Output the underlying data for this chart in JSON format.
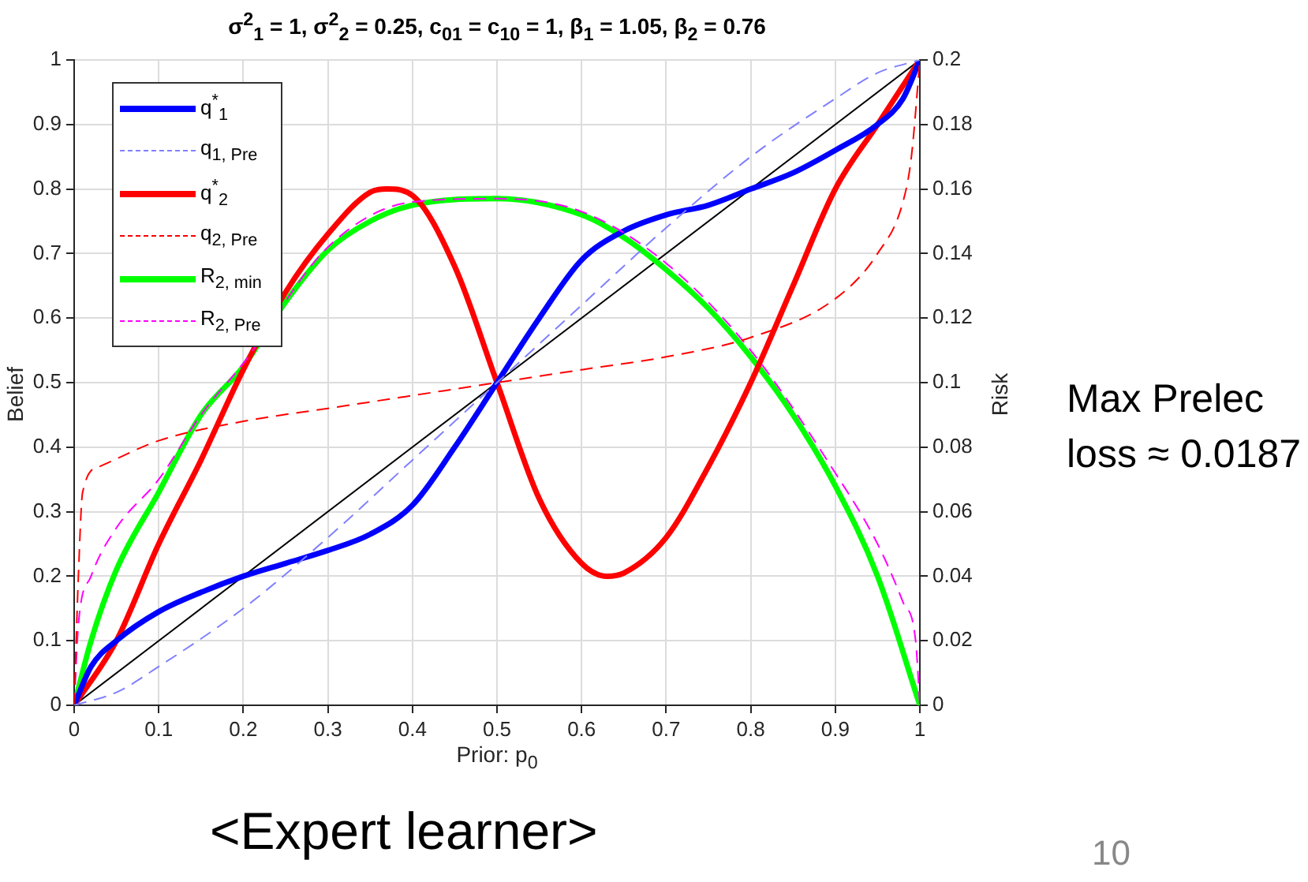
{
  "chart_data": {
    "type": "line",
    "title": "σ$^{2}$$_{1}$ = 1, σ$^{2}$$_{2}$ = 0.25, c$_{01}$ = c$_{10}$ = 1, β$_{1}$ = 1.05, β$_{2}$ = 0.76",
    "xlabel": "Prior: p$_{0}$",
    "ylabel": "Belief",
    "y2label": "Risk",
    "xlim": [
      0,
      1
    ],
    "xticks": [
      0,
      0.1,
      0.2,
      0.3,
      0.4,
      0.5,
      0.6,
      0.7,
      0.8,
      0.9,
      1
    ],
    "ylim": [
      0,
      1
    ],
    "yticks": [
      0,
      0.1,
      0.2,
      0.3,
      0.4,
      0.5,
      0.6,
      0.7,
      0.8,
      0.9,
      1
    ],
    "y2lim": [
      0,
      0.2
    ],
    "y2ticks": [
      0,
      0.02,
      0.04,
      0.06,
      0.08,
      0.1,
      0.12,
      0.14,
      0.16,
      0.18,
      0.2
    ],
    "grid": true,
    "legend": "top left",
    "marker": "none",
    "series": [
      {
        "name": "q$^{*}$$_{1}$",
        "color": "#0000ff",
        "line_style": "solid",
        "x": [
          0,
          0.02,
          0.05,
          0.1,
          0.15,
          0.2,
          0.25,
          0.3,
          0.35,
          0.4,
          0.45,
          0.5,
          0.55,
          0.6,
          0.65,
          0.7,
          0.75,
          0.8,
          0.85,
          0.9,
          0.95,
          0.98,
          1
        ],
        "values": [
          0,
          0.06,
          0.1,
          0.145,
          0.175,
          0.2,
          0.22,
          0.24,
          0.265,
          0.31,
          0.4,
          0.5,
          0.6,
          0.69,
          0.735,
          0.76,
          0.775,
          0.8,
          0.825,
          0.86,
          0.9,
          0.94,
          1
        ]
      },
      {
        "name": "q$_{1, Pre}$",
        "color": "#8080ff",
        "line_style": "dashed",
        "x": [
          0,
          0.05,
          0.1,
          0.2,
          0.3,
          0.4,
          0.5,
          0.6,
          0.7,
          0.8,
          0.9,
          0.95,
          1
        ],
        "values": [
          0,
          0.02,
          0.06,
          0.15,
          0.26,
          0.38,
          0.5,
          0.62,
          0.74,
          0.85,
          0.94,
          0.98,
          1
        ]
      },
      {
        "name": "q$^{*}$$_{2}$",
        "color": "#ff0000",
        "line_style": "solid",
        "x": [
          0,
          0.05,
          0.1,
          0.15,
          0.2,
          0.25,
          0.3,
          0.35,
          0.37,
          0.4,
          0.45,
          0.5,
          0.55,
          0.6,
          0.63,
          0.65,
          0.7,
          0.75,
          0.8,
          0.85,
          0.9,
          0.95,
          1
        ],
        "values": [
          0,
          0.1,
          0.25,
          0.38,
          0.52,
          0.64,
          0.73,
          0.795,
          0.8,
          0.79,
          0.68,
          0.5,
          0.32,
          0.22,
          0.2,
          0.205,
          0.26,
          0.37,
          0.5,
          0.65,
          0.8,
          0.9,
          1
        ]
      },
      {
        "name": "q$_{2, Pre}$",
        "color": "#ff0000",
        "line_style": "dashed",
        "x": [
          0,
          0.005,
          0.01,
          0.03,
          0.1,
          0.2,
          0.3,
          0.4,
          0.5,
          0.6,
          0.7,
          0.8,
          0.9,
          0.95,
          0.98,
          0.99,
          1
        ],
        "values": [
          0,
          0.2,
          0.33,
          0.37,
          0.41,
          0.44,
          0.46,
          0.48,
          0.5,
          0.52,
          0.54,
          0.57,
          0.63,
          0.7,
          0.78,
          0.85,
          1
        ]
      },
      {
        "name": "R$_{2, min}$",
        "color": "#00ff00",
        "line_style": "solid",
        "axis": "y2",
        "x": [
          0,
          0.02,
          0.05,
          0.1,
          0.15,
          0.2,
          0.25,
          0.3,
          0.35,
          0.4,
          0.5,
          0.6,
          0.65,
          0.7,
          0.75,
          0.8,
          0.85,
          0.9,
          0.95,
          1
        ],
        "values": [
          0,
          0.02,
          0.042,
          0.066,
          0.09,
          0.105,
          0.125,
          0.141,
          0.15,
          0.155,
          0.157,
          0.152,
          0.145,
          0.135,
          0.123,
          0.108,
          0.09,
          0.068,
          0.04,
          0
        ]
      },
      {
        "name": "R$_{2, Pre}$",
        "color": "#ff00ff",
        "line_style": "dashed",
        "axis": "y2",
        "x": [
          0,
          0.005,
          0.02,
          0.05,
          0.1,
          0.15,
          0.2,
          0.3,
          0.4,
          0.5,
          0.6,
          0.7,
          0.8,
          0.9,
          0.95,
          0.98,
          0.995,
          1
        ],
        "values": [
          0,
          0.025,
          0.04,
          0.055,
          0.07,
          0.09,
          0.106,
          0.142,
          0.156,
          0.157,
          0.153,
          0.137,
          0.11,
          0.072,
          0.05,
          0.032,
          0.02,
          0
        ]
      },
      {
        "color": "#000000",
        "line_style": "solid",
        "x": [
          0,
          1
        ],
        "values": [
          0,
          1
        ]
      }
    ],
    "annotations": [
      "Max Prelec loss ≈ 0.0187",
      "<Expert learner>",
      "10"
    ]
  }
}
